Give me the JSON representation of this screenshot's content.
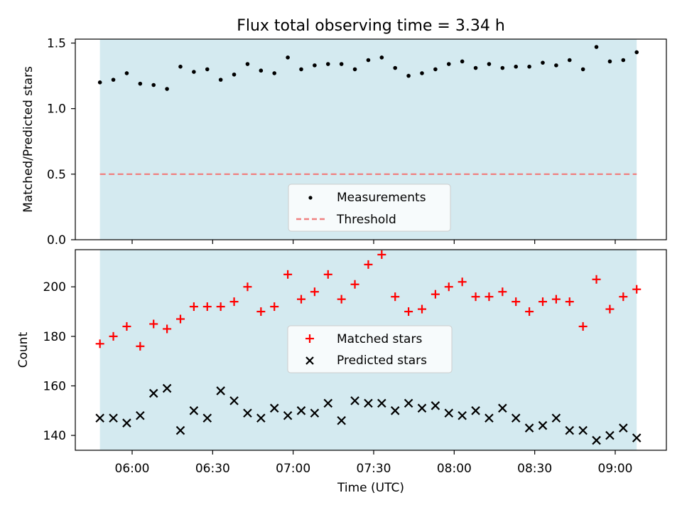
{
  "chart_data": {
    "type": "scatter",
    "title": "Flux total observing time = 3.34 h",
    "xlabel": "Time (UTC)",
    "x_ticks": [
      "06:00",
      "06:30",
      "07:00",
      "07:30",
      "08:00",
      "08:30",
      "09:00"
    ],
    "shaded_region_color": "#d4eaf0",
    "top_panel": {
      "ylabel": "Matched/Predicted stars",
      "ylim": [
        0,
        1.53
      ],
      "y_ticks": [
        "0.0",
        "0.5",
        "1.0",
        "1.5"
      ],
      "legend_placement": "lower center",
      "series": [
        {
          "name": "Measurements",
          "marker": "dot",
          "color": "#000000",
          "points": [
            [
              "05:48",
              1.2
            ],
            [
              "05:53",
              1.22
            ],
            [
              "05:58",
              1.27
            ],
            [
              "06:03",
              1.19
            ],
            [
              "06:08",
              1.18
            ],
            [
              "06:13",
              1.15
            ],
            [
              "06:18",
              1.32
            ],
            [
              "06:23",
              1.28
            ],
            [
              "06:28",
              1.3
            ],
            [
              "06:33",
              1.22
            ],
            [
              "06:38",
              1.26
            ],
            [
              "06:43",
              1.34
            ],
            [
              "06:48",
              1.29
            ],
            [
              "06:53",
              1.27
            ],
            [
              "06:58",
              1.39
            ],
            [
              "07:03",
              1.3
            ],
            [
              "07:08",
              1.33
            ],
            [
              "07:13",
              1.34
            ],
            [
              "07:18",
              1.34
            ],
            [
              "07:23",
              1.3
            ],
            [
              "07:28",
              1.37
            ],
            [
              "07:33",
              1.39
            ],
            [
              "07:38",
              1.31
            ],
            [
              "07:43",
              1.25
            ],
            [
              "07:48",
              1.27
            ],
            [
              "07:53",
              1.3
            ],
            [
              "07:58",
              1.34
            ],
            [
              "08:03",
              1.36
            ],
            [
              "08:08",
              1.31
            ],
            [
              "08:13",
              1.34
            ],
            [
              "08:18",
              1.31
            ],
            [
              "08:23",
              1.32
            ],
            [
              "08:28",
              1.32
            ],
            [
              "08:33",
              1.35
            ],
            [
              "08:38",
              1.33
            ],
            [
              "08:43",
              1.37
            ],
            [
              "08:48",
              1.3
            ],
            [
              "08:53",
              1.47
            ],
            [
              "08:58",
              1.36
            ],
            [
              "09:03",
              1.37
            ],
            [
              "09:08",
              1.43
            ]
          ]
        },
        {
          "name": "Threshold",
          "marker": "dashed-line",
          "color": "#f08080",
          "value": 0.5
        }
      ]
    },
    "bottom_panel": {
      "ylabel": "Count",
      "ylim": [
        134,
        215
      ],
      "y_ticks": [
        "140",
        "160",
        "180",
        "200"
      ],
      "legend_placement": "center",
      "series": [
        {
          "name": "Matched stars",
          "marker": "plus",
          "color": "#ff0000",
          "points": [
            [
              "05:48",
              177
            ],
            [
              "05:53",
              180
            ],
            [
              "05:58",
              184
            ],
            [
              "06:03",
              176
            ],
            [
              "06:08",
              185
            ],
            [
              "06:13",
              183
            ],
            [
              "06:18",
              187
            ],
            [
              "06:23",
              192
            ],
            [
              "06:28",
              192
            ],
            [
              "06:33",
              192
            ],
            [
              "06:38",
              194
            ],
            [
              "06:43",
              200
            ],
            [
              "06:48",
              190
            ],
            [
              "06:53",
              192
            ],
            [
              "06:58",
              205
            ],
            [
              "07:03",
              195
            ],
            [
              "07:08",
              198
            ],
            [
              "07:13",
              205
            ],
            [
              "07:18",
              195
            ],
            [
              "07:23",
              201
            ],
            [
              "07:28",
              209
            ],
            [
              "07:33",
              213
            ],
            [
              "07:38",
              196
            ],
            [
              "07:43",
              190
            ],
            [
              "07:48",
              191
            ],
            [
              "07:53",
              197
            ],
            [
              "07:58",
              200
            ],
            [
              "08:03",
              202
            ],
            [
              "08:08",
              196
            ],
            [
              "08:13",
              196
            ],
            [
              "08:18",
              198
            ],
            [
              "08:23",
              194
            ],
            [
              "08:28",
              190
            ],
            [
              "08:33",
              194
            ],
            [
              "08:38",
              195
            ],
            [
              "08:43",
              194
            ],
            [
              "08:48",
              184
            ],
            [
              "08:53",
              203
            ],
            [
              "08:58",
              191
            ],
            [
              "09:03",
              196
            ],
            [
              "09:08",
              199
            ]
          ]
        },
        {
          "name": "Predicted stars",
          "marker": "x",
          "color": "#000000",
          "points": [
            [
              "05:48",
              147
            ],
            [
              "05:53",
              147
            ],
            [
              "05:58",
              145
            ],
            [
              "06:03",
              148
            ],
            [
              "06:08",
              157
            ],
            [
              "06:13",
              159
            ],
            [
              "06:18",
              142
            ],
            [
              "06:23",
              150
            ],
            [
              "06:28",
              147
            ],
            [
              "06:33",
              158
            ],
            [
              "06:38",
              154
            ],
            [
              "06:43",
              149
            ],
            [
              "06:48",
              147
            ],
            [
              "06:53",
              151
            ],
            [
              "06:58",
              148
            ],
            [
              "07:03",
              150
            ],
            [
              "07:08",
              149
            ],
            [
              "07:13",
              153
            ],
            [
              "07:18",
              146
            ],
            [
              "07:23",
              154
            ],
            [
              "07:28",
              153
            ],
            [
              "07:33",
              153
            ],
            [
              "07:38",
              150
            ],
            [
              "07:43",
              153
            ],
            [
              "07:48",
              151
            ],
            [
              "07:53",
              152
            ],
            [
              "07:58",
              149
            ],
            [
              "08:03",
              148
            ],
            [
              "08:08",
              150
            ],
            [
              "08:13",
              147
            ],
            [
              "08:18",
              151
            ],
            [
              "08:23",
              147
            ],
            [
              "08:28",
              143
            ],
            [
              "08:33",
              144
            ],
            [
              "08:38",
              147
            ],
            [
              "08:43",
              142
            ],
            [
              "08:48",
              142
            ],
            [
              "08:53",
              138
            ],
            [
              "08:58",
              140
            ],
            [
              "09:03",
              143
            ],
            [
              "09:08",
              139
            ]
          ]
        }
      ]
    }
  }
}
